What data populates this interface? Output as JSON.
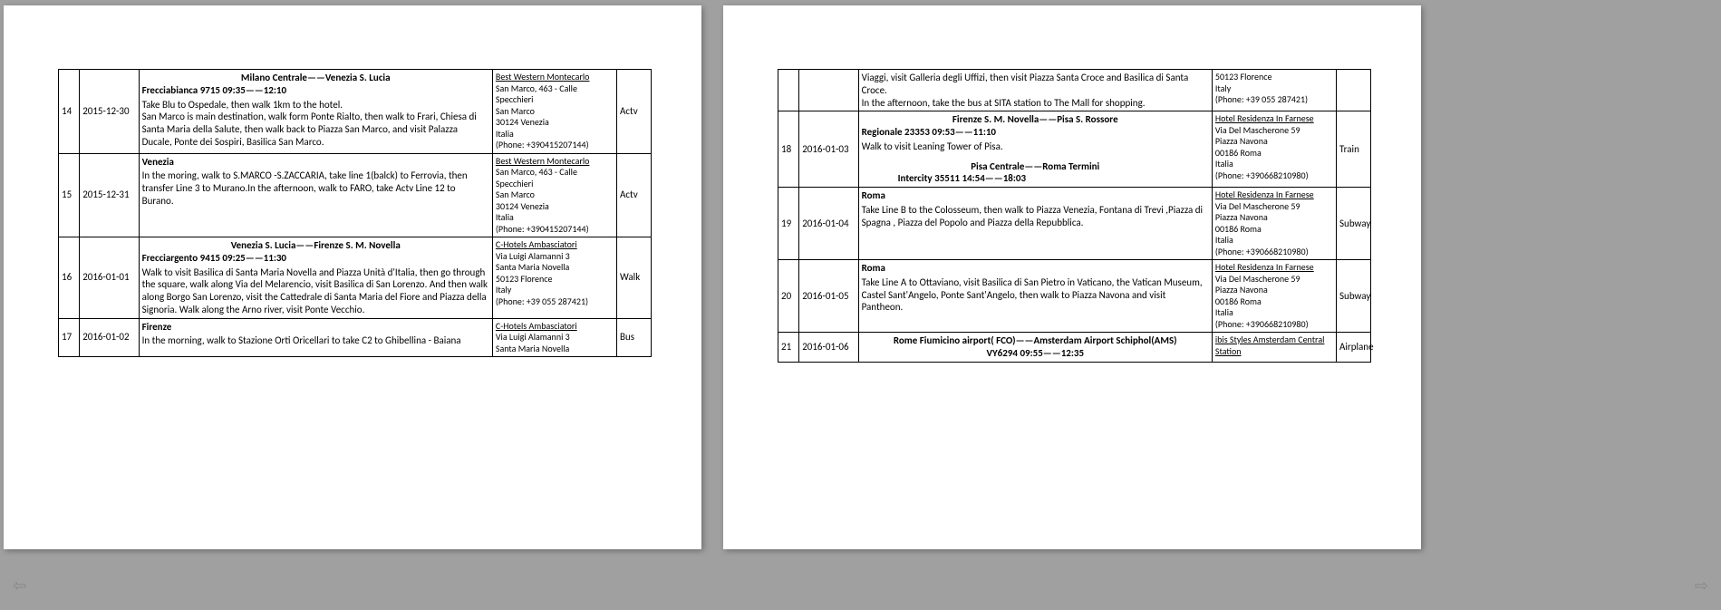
{
  "pages": [
    {
      "rows": [
        {
          "num": "14",
          "date": "2015-12-30",
          "route_title": "Milano Centrale——Venezia S. Lucia",
          "route_sub": "Frecciabianca 9715     09:35——12:10",
          "desc": "Take Blu to Ospedale, then walk 1km to the hotel.\nSan Marco is main destination, walk form Ponte Rialto,  then walk to Frari,    Chiesa di Santa Maria della Salute, then walk back to Piazza San Marco, and visit Palazza Ducale, Ponte dei Sospiri, Basilica San Marco.",
          "hotel_name": "Best Western Montecarlo",
          "hotel_addr": "San Marco, 463 - Calle Specchieri\nSan Marco\n30124 Venezia\nItalia\n(Phone: +390415207144)",
          "mode": "Actv"
        },
        {
          "num": "15",
          "date": "2015-12-31",
          "route_title": "",
          "route_sub": "Venezia",
          "desc": "In the moring, walk to S.MARCO -S.ZACCARIA, take line 1(balck) to Ferrovia, then transfer Line 3 to Murano.In the afternoon, walk to FARO, take Actv Line 12 to Burano.",
          "hotel_name": "Best Western Montecarlo",
          "hotel_addr": "San Marco, 463 - Calle Specchieri\nSan Marco\n30124 Venezia\nItalia\n(Phone: +390415207144)",
          "mode": "Actv"
        },
        {
          "num": "16",
          "date": "2016-01-01",
          "route_title": "Venezia S. Lucia——Firenze S. M. Novella",
          "route_sub": "Frecciargento 9415    09:25——11:30",
          "desc": "Walk to visit Basilica di Santa Maria Novella and Piazza Unità d'Italia, then go through the square, walk along Via del Melarencio, visit Basilica di San Lorenzo. And then walk along Borgo San Lorenzo, visit the Cattedrale di Santa Maria del Fiore and Piazza della Signoria. Walk along the Arno river, visit Ponte Vecchio.",
          "hotel_name": "C-Hotels Ambasciatori ",
          "hotel_addr": "Via Luigi Alamanni 3\nSanta Maria Novella\n50123 Florence\nItaly\n(Phone: +39 055 287421)",
          "mode": "Walk"
        },
        {
          "num": "17",
          "date": "2016-01-02",
          "route_title": "",
          "route_sub": "Firenze",
          "desc": "In the morning, walk to Stazione Orti Oricellari to take C2 to Ghibellina - Baiana",
          "hotel_name": "C-Hotels Ambasciatori ",
          "hotel_addr": "Via Luigi Alamanni 3\nSanta Maria Novella",
          "mode": "Bus",
          "clipped": true
        }
      ]
    },
    {
      "rows": [
        {
          "num": "",
          "date": "",
          "route_title": "",
          "route_sub": "",
          "desc": "Viaggi, visit Galleria degli Uffizi, then visit Piazza Santa Croce and Basilica di Santa Croce.\nIn the afternoon, take the bus at SITA station to The Mall for shopping.",
          "hotel_name": "",
          "hotel_addr": "50123 Florence\nItaly\n(Phone: +39 055 287421)",
          "mode": ""
        },
        {
          "num": "18",
          "date": "2016-01-03",
          "route_title": "Firenze S. M. Novella——Pisa S. Rossore",
          "route_sub": "Regionale 23353    09:53——11:10",
          "desc": "Walk to visit Leaning Tower of Pisa.",
          "route_title2": "Pisa Centrale——Roma Termini",
          "route_sub2": "Intercity    35511    14:54——18:03",
          "hotel_name": "Hotel Residenza In Farnese ",
          "hotel_addr": "Via Del Mascherone 59\nPiazza Navona\n00186 Roma\nItalia\n(Phone: +390668210980)",
          "mode": "Train"
        },
        {
          "num": "19",
          "date": "2016-01-04",
          "route_title": "",
          "route_sub": "Roma",
          "desc": "Take Line B to the Colosseum, then walk to Piazza Venezia, Fontana di Trevi ,Piazza di Spagna , Piazza del Popolo and Piazza della Repubblica.",
          "hotel_name": "Hotel Residenza In Farnese ",
          "hotel_addr": "Via Del Mascherone 59\nPiazza Navona\n00186 Roma\nItalia\n(Phone: +390668210980)",
          "mode": "Subway"
        },
        {
          "num": "20",
          "date": "2016-01-05",
          "route_title": "",
          "route_sub": "Roma",
          "desc": "Take Line A to Ottaviano, visit Basilica di San Pietro in Vaticano, the Vatican Museum, Castel Sant'Angelo, Ponte Sant'Angelo, then walk to Piazza Navona and visit Pantheon.",
          "hotel_name": "Hotel Residenza In Farnese ",
          "hotel_addr": "Via Del Mascherone 59\nPiazza Navona\n00186 Roma\nItalia\n(Phone: +390668210980)",
          "mode": "Subway"
        },
        {
          "num": "21",
          "date": "2016-01-06",
          "route_title": "Rome Fiumicino airport( FCO)——Amsterdam Airport Schiphol(AMS)",
          "route_sub": "VY6294        09:55——12:35",
          "center_both": true,
          "desc": "",
          "hotel_name": "ibis Styles Amsterdam Central Station ",
          "hotel_addr": "",
          "mode": "Airplane",
          "clipped": true
        }
      ]
    }
  ],
  "nav": {
    "prev": "⇦",
    "next": "⇨"
  }
}
